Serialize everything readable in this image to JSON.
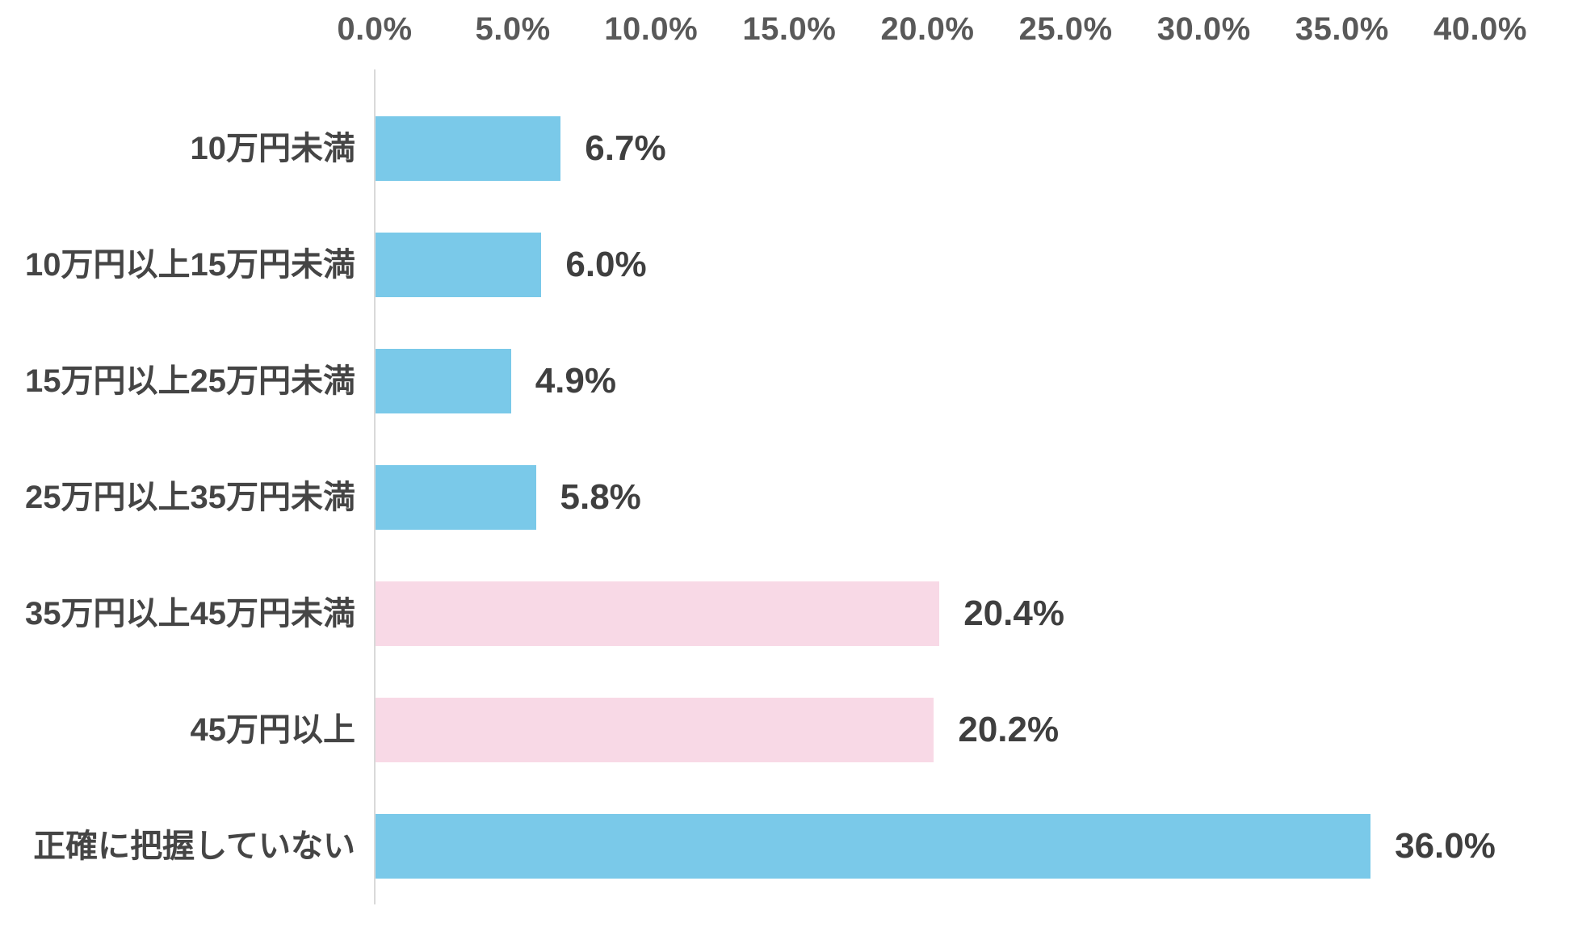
{
  "colors": {
    "bar_blue": "#7ac9e9",
    "bar_pink": "#f8d9e6",
    "axis_line": "#d9d9d9",
    "tick_text": "#595959",
    "label_text": "#454545",
    "value_text": "#3f3f3f",
    "background": "#ffffff"
  },
  "chart_data": {
    "type": "bar",
    "orientation": "horizontal",
    "title": "",
    "xlabel": "",
    "ylabel": "",
    "xlim": [
      0,
      40
    ],
    "grid": false,
    "legend": "none",
    "x_tick_labels": [
      "0.0%",
      "5.0%",
      "10.0%",
      "15.0%",
      "20.0%",
      "25.0%",
      "30.0%",
      "35.0%",
      "40.0%"
    ],
    "x_tick_values": [
      0,
      5,
      10,
      15,
      20,
      25,
      30,
      35,
      40
    ],
    "categories": [
      "10万円未満",
      "10万円以上15万円未満",
      "15万円以上25万円未満",
      "25万円以上35万円未満",
      "35万円以上45万円未満",
      "45万円以上",
      "正確に把握していない"
    ],
    "values": [
      6.7,
      6.0,
      4.9,
      5.8,
      20.4,
      20.2,
      36.0
    ],
    "value_labels": [
      "6.7%",
      "6.0%",
      "4.9%",
      "5.8%",
      "20.4%",
      "20.2%",
      "36.0%"
    ],
    "bar_colors": [
      "#7ac9e9",
      "#7ac9e9",
      "#7ac9e9",
      "#7ac9e9",
      "#f8d9e6",
      "#f8d9e6",
      "#7ac9e9"
    ],
    "rows": [
      {
        "label": "10万円未満",
        "value": 6.7,
        "value_label": "6.7%"
      },
      {
        "label": "10万円以上15万円未満",
        "value": 6.0,
        "value_label": "6.0%"
      },
      {
        "label": "15万円以上25万円未満",
        "value": 4.9,
        "value_label": "4.9%"
      },
      {
        "label": "25万円以上35万円未満",
        "value": 5.8,
        "value_label": "5.8%"
      },
      {
        "label": "35万円以上45万円未満",
        "value": 20.4,
        "value_label": "20.4%"
      },
      {
        "label": "45万円以上",
        "value": 20.2,
        "value_label": "20.2%"
      },
      {
        "label": "正確に把握していない",
        "value": 36.0,
        "value_label": "36.0%"
      }
    ]
  }
}
